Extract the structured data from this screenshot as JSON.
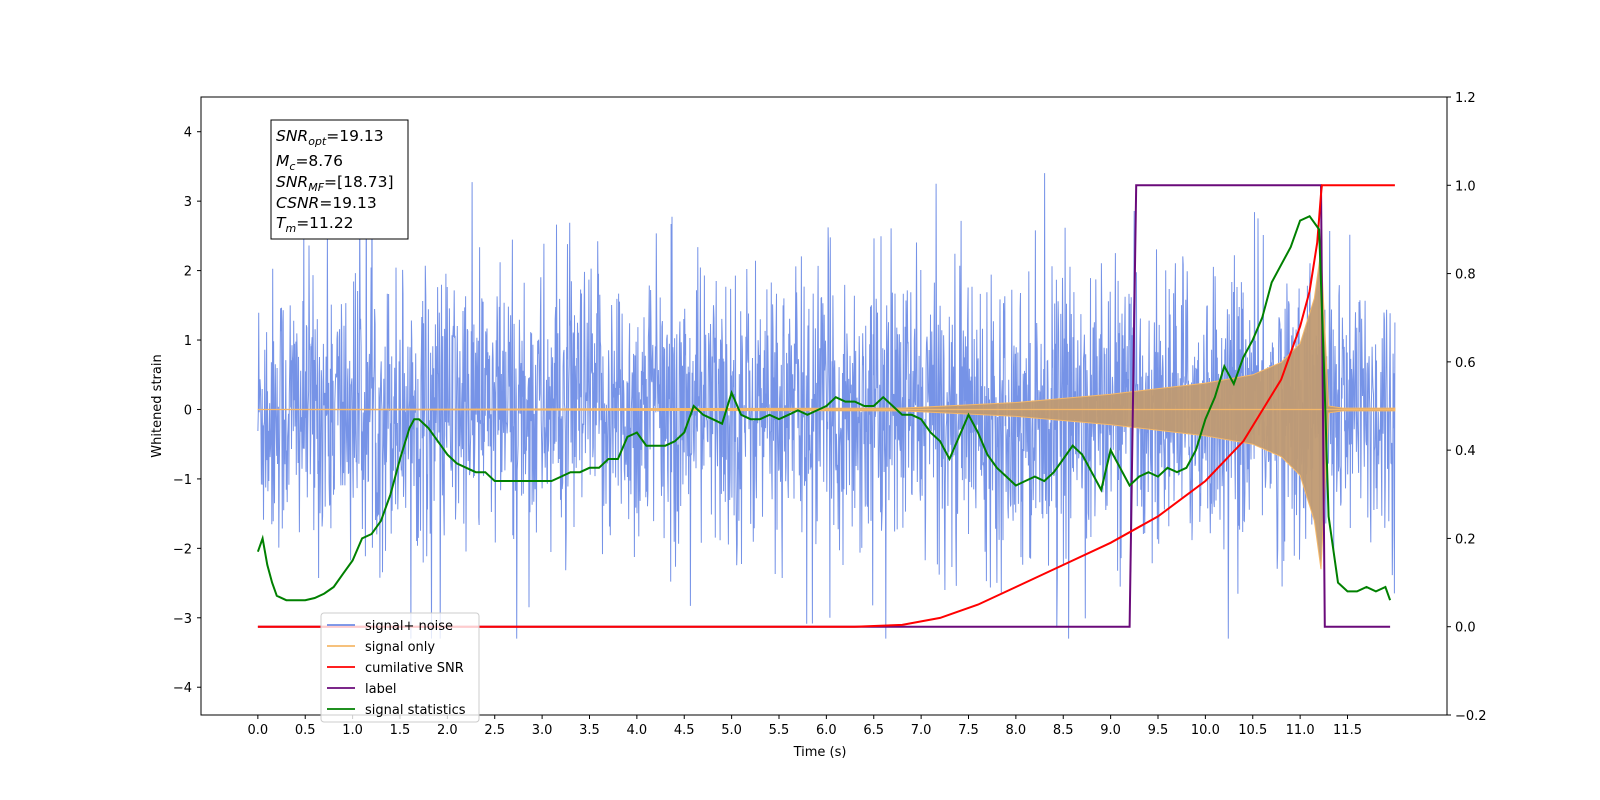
{
  "chart_data": {
    "type": "line",
    "xlabel": "Time (s)",
    "ylabel": "Whitened strain",
    "xlim": [
      -0.6,
      12.55
    ],
    "ylim": [
      -4.4,
      4.5
    ],
    "y2lim": [
      -0.2,
      1.2
    ],
    "x_ticks": [
      "0.0",
      "0.5",
      "1.0",
      "1.5",
      "2.0",
      "2.5",
      "3.0",
      "3.5",
      "4.0",
      "4.5",
      "5.0",
      "5.5",
      "6.0",
      "6.5",
      "7.0",
      "7.5",
      "8.0",
      "8.5",
      "9.0",
      "9.5",
      "10.0",
      "10.5",
      "11.0",
      "11.5"
    ],
    "y_ticks": [
      "4",
      "3",
      "2",
      "1",
      "0",
      "−1",
      "−2",
      "−3",
      "−4"
    ],
    "y2_ticks": [
      "1.2",
      "1.0",
      "0.8",
      "0.6",
      "0.4",
      "0.2",
      "0.0",
      "−0.2"
    ],
    "annotation": {
      "snr_opt": "=19.13",
      "mc": "=8.76",
      "snr_mf": "=[18.73]",
      "csnr": "=19.13",
      "tm": "=11.22"
    },
    "legend_placement": "lower-left",
    "series": [
      {
        "name": "signal+ noise",
        "color": "#6f8de6",
        "axis": "left",
        "description_stats": {
          "x_start": 0.0,
          "x_end": 12.0,
          "noise_std": 1.0,
          "extremes": [
            4.12,
            -4.02
          ]
        }
      },
      {
        "name": "signal only",
        "color": "#f5b869",
        "axis": "left",
        "envelope": {
          "x": [
            0.0,
            6.8,
            8.0,
            9.0,
            10.0,
            10.5,
            10.8,
            11.0,
            11.15,
            11.22,
            11.3,
            11.45
          ],
          "amp": [
            0.0,
            0.02,
            0.1,
            0.22,
            0.38,
            0.5,
            0.68,
            0.95,
            1.6,
            2.3,
            0.05,
            0.02
          ]
        }
      },
      {
        "name": "cumilative SNR",
        "color": "#ff0000",
        "axis": "right",
        "x": [
          0.0,
          6.3,
          6.8,
          7.2,
          7.6,
          8.0,
          8.5,
          9.0,
          9.5,
          10.0,
          10.4,
          10.8,
          11.0,
          11.1,
          11.18,
          11.22,
          11.23,
          11.25,
          12.0
        ],
        "y": [
          0.0,
          0.0,
          0.004,
          0.02,
          0.05,
          0.09,
          0.14,
          0.19,
          0.25,
          0.33,
          0.42,
          0.56,
          0.68,
          0.76,
          0.87,
          0.98,
          1.0,
          1.0,
          1.0
        ]
      },
      {
        "name": "label",
        "color": "#6a0a7a",
        "axis": "right",
        "x": [
          0.0,
          9.2,
          9.27,
          11.22,
          11.26,
          11.95
        ],
        "y": [
          0.0,
          0.0,
          1.0,
          1.0,
          0.0,
          0.0
        ]
      },
      {
        "name": "signal statistics",
        "color": "#008000",
        "axis": "right",
        "x": [
          0.0,
          0.05,
          0.1,
          0.15,
          0.2,
          0.3,
          0.4,
          0.5,
          0.6,
          0.7,
          0.8,
          0.9,
          1.0,
          1.1,
          1.2,
          1.3,
          1.4,
          1.5,
          1.6,
          1.65,
          1.7,
          1.8,
          1.9,
          2.0,
          2.1,
          2.2,
          2.3,
          2.4,
          2.5,
          2.6,
          2.7,
          2.8,
          2.9,
          3.0,
          3.1,
          3.2,
          3.3,
          3.4,
          3.5,
          3.6,
          3.7,
          3.8,
          3.9,
          4.0,
          4.1,
          4.2,
          4.3,
          4.4,
          4.5,
          4.6,
          4.7,
          4.8,
          4.9,
          5.0,
          5.1,
          5.2,
          5.3,
          5.4,
          5.5,
          5.6,
          5.7,
          5.8,
          5.9,
          6.0,
          6.1,
          6.2,
          6.3,
          6.4,
          6.5,
          6.6,
          6.7,
          6.8,
          6.9,
          7.0,
          7.1,
          7.2,
          7.3,
          7.4,
          7.5,
          7.6,
          7.7,
          7.8,
          7.9,
          8.0,
          8.1,
          8.2,
          8.3,
          8.4,
          8.5,
          8.6,
          8.7,
          8.8,
          8.9,
          9.0,
          9.1,
          9.2,
          9.3,
          9.4,
          9.5,
          9.6,
          9.7,
          9.8,
          9.9,
          10.0,
          10.1,
          10.2,
          10.3,
          10.4,
          10.5,
          10.6,
          10.7,
          10.8,
          10.9,
          11.0,
          11.1,
          11.2,
          11.25,
          11.3,
          11.4,
          11.5,
          11.6,
          11.7,
          11.8,
          11.9,
          11.95
        ],
        "y": [
          0.17,
          0.2,
          0.14,
          0.1,
          0.07,
          0.06,
          0.06,
          0.06,
          0.065,
          0.075,
          0.09,
          0.12,
          0.15,
          0.2,
          0.21,
          0.24,
          0.3,
          0.38,
          0.45,
          0.47,
          0.47,
          0.45,
          0.42,
          0.39,
          0.37,
          0.36,
          0.35,
          0.35,
          0.33,
          0.33,
          0.33,
          0.33,
          0.33,
          0.33,
          0.33,
          0.34,
          0.35,
          0.35,
          0.36,
          0.36,
          0.38,
          0.38,
          0.43,
          0.44,
          0.41,
          0.41,
          0.41,
          0.42,
          0.44,
          0.5,
          0.48,
          0.47,
          0.46,
          0.53,
          0.48,
          0.47,
          0.47,
          0.48,
          0.47,
          0.48,
          0.49,
          0.48,
          0.49,
          0.5,
          0.52,
          0.51,
          0.51,
          0.5,
          0.5,
          0.52,
          0.5,
          0.48,
          0.48,
          0.47,
          0.44,
          0.42,
          0.38,
          0.43,
          0.48,
          0.44,
          0.39,
          0.36,
          0.34,
          0.32,
          0.33,
          0.34,
          0.33,
          0.35,
          0.38,
          0.41,
          0.39,
          0.35,
          0.31,
          0.4,
          0.36,
          0.32,
          0.34,
          0.35,
          0.34,
          0.36,
          0.35,
          0.36,
          0.4,
          0.47,
          0.52,
          0.59,
          0.55,
          0.61,
          0.65,
          0.7,
          0.78,
          0.82,
          0.86,
          0.92,
          0.93,
          0.9,
          0.6,
          0.25,
          0.1,
          0.08,
          0.08,
          0.09,
          0.08,
          0.09,
          0.06
        ]
      }
    ]
  },
  "legend": {
    "items": [
      {
        "label": "signal+ noise",
        "color": "#6f8de6"
      },
      {
        "label": "signal only",
        "color": "#f5b869"
      },
      {
        "label": "cumilative SNR",
        "color": "#ff0000"
      },
      {
        "label": "label",
        "color": "#6a0a7a"
      },
      {
        "label": "signal statistics",
        "color": "#008000"
      }
    ]
  }
}
